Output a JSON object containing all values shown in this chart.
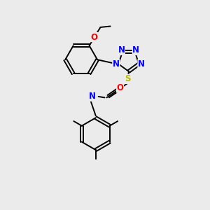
{
  "bg_color": "#ebebeb",
  "atom_colors": {
    "N": "#0000ff",
    "O": "#ff0000",
    "S": "#b8b800",
    "H": "#007070",
    "C": "#000000"
  },
  "bond_color": "#000000",
  "bond_width": 1.4,
  "font_size_atom": 8.5
}
